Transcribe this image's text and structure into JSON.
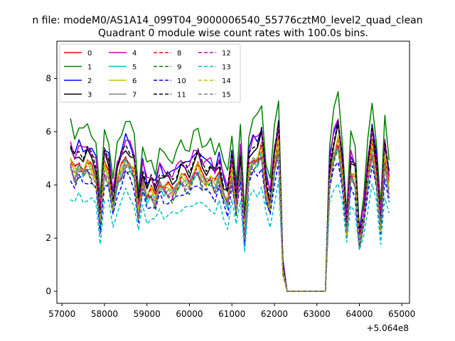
{
  "chart_data": {
    "type": "line",
    "suptitle": "n file: modeM0/AS1A14_099T04_9000006540_55776cztM0_level2_quad_clean",
    "title": "Quadrant 0 module wise count rates with 100.0s bins.",
    "xlabel": "",
    "ylabel": "",
    "x_offset_label": "+5.064e8",
    "xlim": [
      56880,
      65180
    ],
    "ylim": [
      -0.45,
      9.4
    ],
    "xticks": [
      57000,
      58000,
      59000,
      60000,
      61000,
      62000,
      63000,
      64000,
      65000
    ],
    "yticks": [
      0,
      2,
      4,
      6,
      8
    ],
    "x": [
      57200,
      57300,
      57400,
      57500,
      57600,
      57700,
      57800,
      57900,
      58000,
      58100,
      58200,
      58300,
      58400,
      58500,
      58600,
      58700,
      58800,
      58900,
      59000,
      59100,
      59200,
      59300,
      59400,
      59500,
      59600,
      59700,
      59800,
      59900,
      60000,
      60100,
      60200,
      60300,
      60400,
      60500,
      60600,
      60700,
      60800,
      60900,
      61000,
      61100,
      61200,
      61300,
      61400,
      61500,
      61600,
      61700,
      61800,
      61900,
      62000,
      62100,
      62200,
      62300,
      62400,
      62500,
      62600,
      62700,
      62800,
      62900,
      63000,
      63100,
      63200,
      63300,
      63400,
      63500,
      63600,
      63700,
      63800,
      63900,
      64000,
      64100,
      64200,
      64300,
      64400,
      64500,
      64600,
      64700
    ],
    "base_profile": [
      4.9,
      4.5,
      4.8,
      4.6,
      4.8,
      4.6,
      4.3,
      2.6,
      4.7,
      4.4,
      3.2,
      4.2,
      4.6,
      5.0,
      4.8,
      4.5,
      3.0,
      4.2,
      3.6,
      3.8,
      3.5,
      4.1,
      3.9,
      3.9,
      3.8,
      4.0,
      4.3,
      4.2,
      4.1,
      4.5,
      4.7,
      4.3,
      4.2,
      4.3,
      4.0,
      4.4,
      3.7,
      3.4,
      4.6,
      3.2,
      4.7,
      2.2,
      4.6,
      5.0,
      5.0,
      5.4,
      3.8,
      3.2,
      4.7,
      5.6,
      0.9,
      0.0,
      0.0,
      0.0,
      0.0,
      0.0,
      0.0,
      0.0,
      0.0,
      0.0,
      0.0,
      4.3,
      5.2,
      5.7,
      4.4,
      2.3,
      4.5,
      4.2,
      1.9,
      2.7,
      4.3,
      5.5,
      4.4,
      2.4,
      5.0,
      3.9
    ],
    "series": [
      {
        "name": "0",
        "color": "#ff0000",
        "style": "solid",
        "scale": 1.0,
        "offset": 0.05
      },
      {
        "name": "1",
        "color": "#008000",
        "style": "solid",
        "scale": 1.3,
        "offset": 0.0
      },
      {
        "name": "2",
        "color": "#0000ff",
        "style": "solid",
        "scale": 1.15,
        "offset": 0.0
      },
      {
        "name": "3",
        "color": "#000000",
        "style": "solid",
        "scale": 1.08,
        "offset": 0.0
      },
      {
        "name": "4",
        "color": "#bf00bf",
        "style": "solid",
        "scale": 1.12,
        "offset": 0.1
      },
      {
        "name": "5",
        "color": "#00bfbf",
        "style": "solid",
        "scale": 1.0,
        "offset": -0.15
      },
      {
        "name": "6",
        "color": "#bfbf00",
        "style": "solid",
        "scale": 1.0,
        "offset": -0.1
      },
      {
        "name": "7",
        "color": "#808080",
        "style": "solid",
        "scale": 0.97,
        "offset": 0.0
      },
      {
        "name": "8",
        "color": "#ff0000",
        "style": "dashed",
        "scale": 0.98,
        "offset": 0.1
      },
      {
        "name": "9",
        "color": "#008000",
        "style": "dashed",
        "scale": 0.92,
        "offset": 0.0
      },
      {
        "name": "10",
        "color": "#0000ff",
        "style": "dashed",
        "scale": 0.9,
        "offset": -0.1
      },
      {
        "name": "11",
        "color": "#000000",
        "style": "dashed",
        "scale": 1.1,
        "offset": 0.05
      },
      {
        "name": "12",
        "color": "#bf00bf",
        "style": "dashed",
        "scale": 0.95,
        "offset": 0.0
      },
      {
        "name": "13",
        "color": "#00bfbf",
        "style": "dashed",
        "scale": 0.74,
        "offset": 0.0
      },
      {
        "name": "14",
        "color": "#bfbf00",
        "style": "dashed",
        "scale": 1.0,
        "offset": 0.0
      },
      {
        "name": "15",
        "color": "#808080",
        "style": "dashed",
        "scale": 0.96,
        "offset": -0.05
      }
    ],
    "legend_position": "top-left",
    "legend_columns": 4,
    "grid": false
  }
}
